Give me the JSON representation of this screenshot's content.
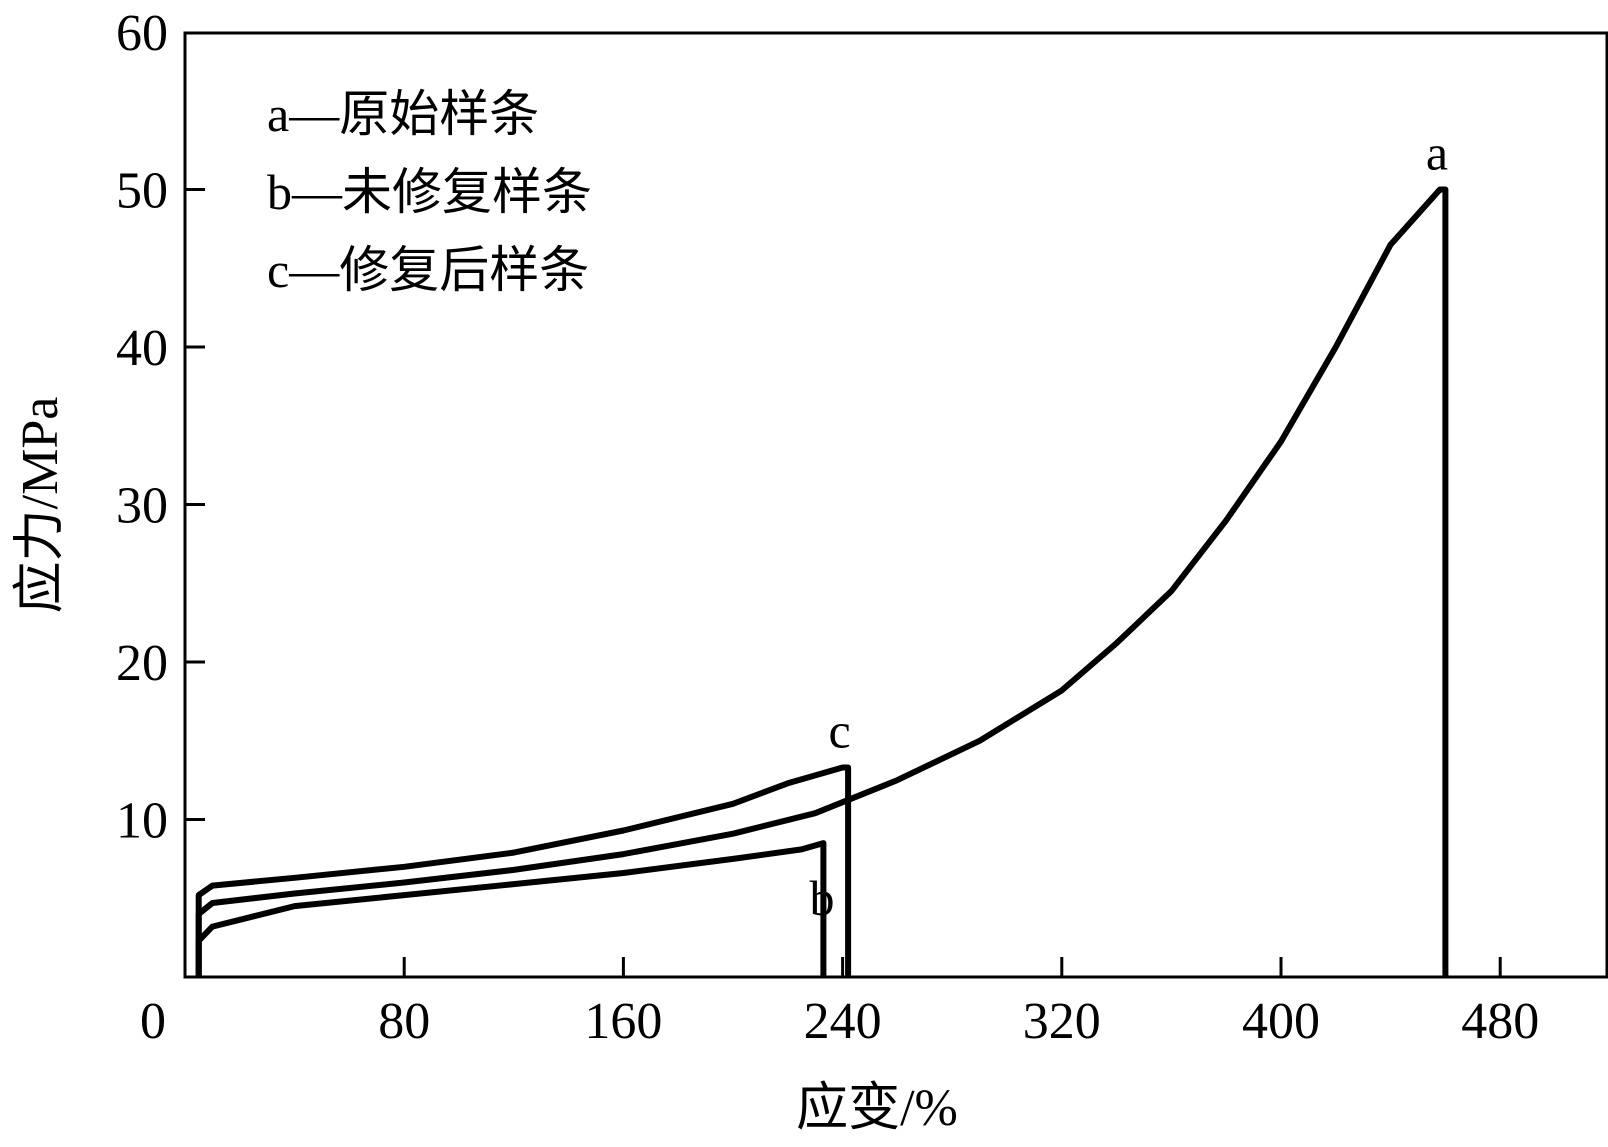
{
  "chart_data": {
    "type": "line",
    "xlabel": "应变/%",
    "ylabel": "应力/MPa",
    "xlim": [
      0,
      500
    ],
    "ylim": [
      0,
      60
    ],
    "xticks": [
      0,
      80,
      160,
      240,
      320,
      400,
      480
    ],
    "yticks": [
      10,
      20,
      30,
      40,
      50,
      60
    ],
    "grid": false,
    "legend": {
      "placement": "top-left",
      "entries": [
        "a—原始样条",
        "b—未修复样条",
        "c—修复后样条"
      ]
    },
    "series": [
      {
        "name": "a",
        "label_text": "a",
        "x": [
          5,
          5,
          10,
          40,
          80,
          120,
          160,
          200,
          230,
          260,
          290,
          320,
          340,
          360,
          380,
          400,
          420,
          440,
          458,
          460,
          460
        ],
        "y": [
          0,
          4,
          4.7,
          5.3,
          6.0,
          6.8,
          7.8,
          9.1,
          10.4,
          12.5,
          15.0,
          18.2,
          21.2,
          24.5,
          29.0,
          34.0,
          40.0,
          46.5,
          50.0,
          50.0,
          0
        ]
      },
      {
        "name": "b",
        "label_text": "b",
        "x": [
          5,
          5,
          10,
          40,
          80,
          120,
          160,
          200,
          225,
          233,
          233
        ],
        "y": [
          0,
          2.3,
          3.2,
          4.5,
          5.2,
          5.9,
          6.6,
          7.5,
          8.1,
          8.5,
          0
        ]
      },
      {
        "name": "c",
        "label_text": "c",
        "x": [
          5,
          5,
          10,
          40,
          80,
          120,
          160,
          200,
          220,
          240,
          242,
          242
        ],
        "y": [
          0,
          5.2,
          5.8,
          6.3,
          7.0,
          7.9,
          9.3,
          11.0,
          12.3,
          13.3,
          13.3,
          0
        ]
      }
    ]
  }
}
